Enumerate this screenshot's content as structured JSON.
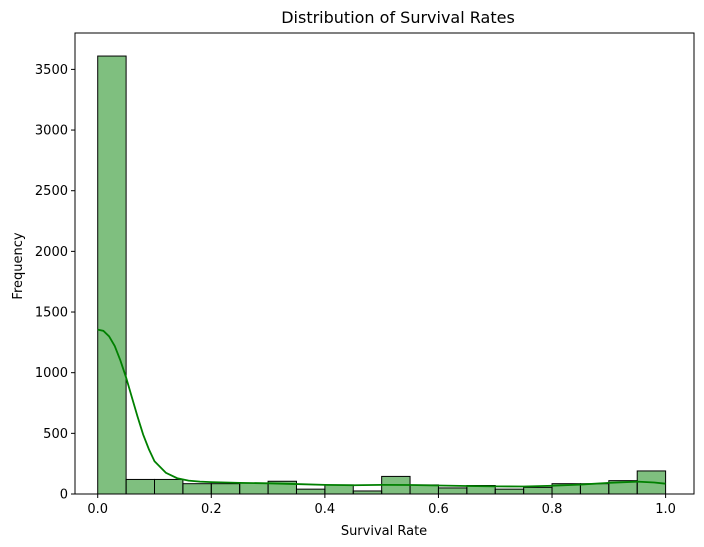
{
  "chart_data": {
    "type": "histogram",
    "title": "Distribution of Survival Rates",
    "xlabel": "Survival Rate",
    "ylabel": "Frequency",
    "xlim": [
      -0.04,
      1.05
    ],
    "ylim": [
      0,
      3800
    ],
    "x_ticks": [
      0.0,
      0.2,
      0.4,
      0.6,
      0.8,
      1.0
    ],
    "x_tick_labels": [
      "0.0",
      "0.2",
      "0.4",
      "0.6",
      "0.8",
      "1.0"
    ],
    "y_ticks": [
      0,
      500,
      1000,
      1500,
      2000,
      2500,
      3000,
      3500
    ],
    "y_tick_labels": [
      "0",
      "500",
      "1000",
      "1500",
      "2000",
      "2500",
      "3000",
      "3500"
    ],
    "bins": [
      {
        "start": 0.0,
        "end": 0.05,
        "count": 3610
      },
      {
        "start": 0.05,
        "end": 0.1,
        "count": 120
      },
      {
        "start": 0.1,
        "end": 0.15,
        "count": 120
      },
      {
        "start": 0.15,
        "end": 0.2,
        "count": 85
      },
      {
        "start": 0.2,
        "end": 0.25,
        "count": 85
      },
      {
        "start": 0.25,
        "end": 0.3,
        "count": 90
      },
      {
        "start": 0.3,
        "end": 0.35,
        "count": 105
      },
      {
        "start": 0.35,
        "end": 0.4,
        "count": 40
      },
      {
        "start": 0.4,
        "end": 0.45,
        "count": 75
      },
      {
        "start": 0.45,
        "end": 0.5,
        "count": 25
      },
      {
        "start": 0.5,
        "end": 0.55,
        "count": 145
      },
      {
        "start": 0.55,
        "end": 0.6,
        "count": 75
      },
      {
        "start": 0.6,
        "end": 0.65,
        "count": 50
      },
      {
        "start": 0.65,
        "end": 0.7,
        "count": 70
      },
      {
        "start": 0.7,
        "end": 0.75,
        "count": 40
      },
      {
        "start": 0.75,
        "end": 0.8,
        "count": 55
      },
      {
        "start": 0.8,
        "end": 0.85,
        "count": 85
      },
      {
        "start": 0.85,
        "end": 0.9,
        "count": 85
      },
      {
        "start": 0.9,
        "end": 0.95,
        "count": 110
      },
      {
        "start": 0.95,
        "end": 1.0,
        "count": 190
      }
    ],
    "kde": {
      "x": [
        0.0,
        0.01,
        0.02,
        0.03,
        0.04,
        0.05,
        0.06,
        0.07,
        0.08,
        0.09,
        0.1,
        0.12,
        0.14,
        0.16,
        0.18,
        0.2,
        0.25,
        0.3,
        0.35,
        0.4,
        0.45,
        0.5,
        0.55,
        0.6,
        0.65,
        0.7,
        0.75,
        0.8,
        0.85,
        0.9,
        0.95,
        0.98,
        1.0
      ],
      "y": [
        1355,
        1345,
        1300,
        1220,
        1100,
        960,
        800,
        640,
        490,
        370,
        270,
        175,
        130,
        110,
        102,
        98,
        92,
        88,
        82,
        75,
        72,
        75,
        74,
        70,
        66,
        63,
        62,
        68,
        78,
        92,
        102,
        95,
        85
      ]
    },
    "grid": false,
    "legend": "none",
    "colors": {
      "bar_fill": "#008000",
      "bar_fill_opacity": 0.5,
      "bar_edge": "#000000",
      "kde_line": "#008000"
    }
  }
}
